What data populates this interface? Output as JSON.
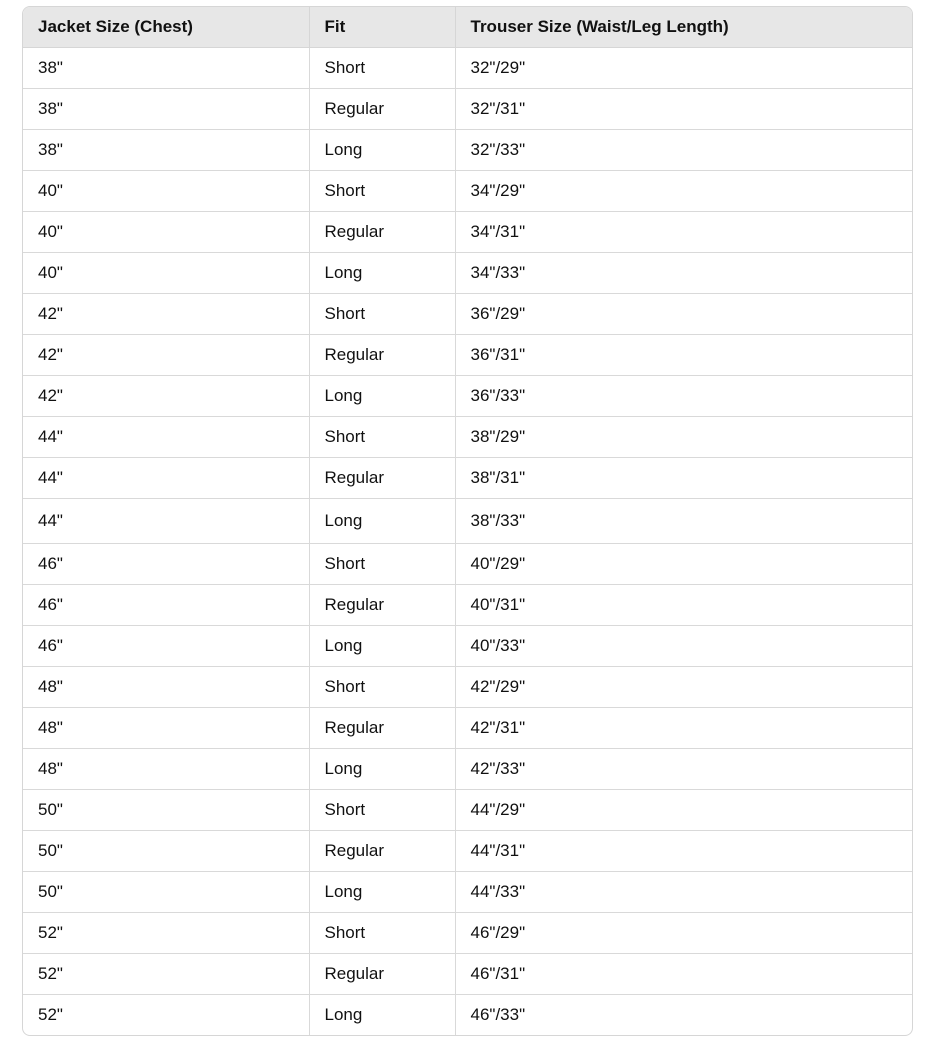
{
  "table": {
    "headers": [
      "Jacket Size (Chest)",
      "Fit",
      "Trouser Size (Waist/Leg Length)"
    ],
    "rows": [
      [
        "38\"",
        "Short",
        "32\"/29\""
      ],
      [
        "38\"",
        "Regular",
        "32\"/31\""
      ],
      [
        "38\"",
        "Long",
        "32\"/33\""
      ],
      [
        "40\"",
        "Short",
        "34\"/29\""
      ],
      [
        "40\"",
        "Regular",
        "34\"/31\""
      ],
      [
        "40\"",
        "Long",
        "34\"/33\""
      ],
      [
        "42\"",
        "Short",
        "36\"/29\""
      ],
      [
        "42\"",
        "Regular",
        "36\"/31\""
      ],
      [
        "42\"",
        "Long",
        "36\"/33\""
      ],
      [
        "44\"",
        "Short",
        "38\"/29\""
      ],
      [
        "44\"",
        "Regular",
        "38\"/31\""
      ],
      [
        "44\"",
        "Long",
        "38\"/33\""
      ],
      [
        "46\"",
        "Short",
        "40\"/29\""
      ],
      [
        "46\"",
        "Regular",
        "40\"/31\""
      ],
      [
        "46\"",
        "Long",
        "40\"/33\""
      ],
      [
        "48\"",
        "Short",
        "42\"/29\""
      ],
      [
        "48\"",
        "Regular",
        "42\"/31\""
      ],
      [
        "48\"",
        "Long",
        "42\"/33\""
      ],
      [
        "50\"",
        "Short",
        "44\"/29\""
      ],
      [
        "50\"",
        "Regular",
        "44\"/31\""
      ],
      [
        "50\"",
        "Long",
        "44\"/33\""
      ],
      [
        "52\"",
        "Short",
        "46\"/29\""
      ],
      [
        "52\"",
        "Regular",
        "46\"/31\""
      ],
      [
        "52\"",
        "Long",
        "46\"/33\""
      ]
    ]
  }
}
